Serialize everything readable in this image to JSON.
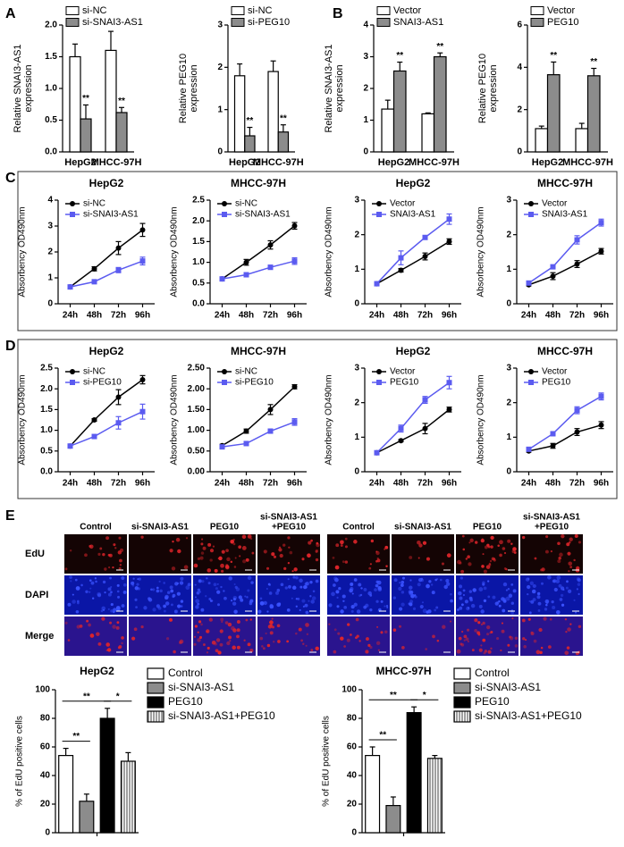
{
  "panel_labels": [
    "A",
    "B",
    "C",
    "D",
    "E"
  ],
  "image_grid": {
    "columns": [
      [
        "Control"
      ],
      [
        "si-SNAI3-AS1"
      ],
      [
        "PEG10"
      ],
      [
        "si-SNAI3-AS1",
        "+PEG10"
      ]
    ],
    "rows": [
      "EdU",
      "DAPI",
      "Merge"
    ]
  },
  "chart_data": [
    {
      "type": "bar",
      "ylabel": [
        "Relative SNAI3-AS1",
        "expression"
      ],
      "categories": [
        "HepG2",
        "MHCC-97H"
      ],
      "legend": "upper left",
      "series": [
        {
          "name": "si-NC",
          "color": "#ffffff",
          "values": [
            1.5,
            1.6
          ],
          "errors": [
            0.2,
            0.3
          ]
        },
        {
          "name": "si-SNAI3-AS1",
          "color": "#8c8c8c",
          "values": [
            0.52,
            0.62
          ],
          "errors": [
            0.22,
            0.08
          ],
          "significance": [
            "**",
            "**"
          ]
        }
      ],
      "ylim": [
        0,
        2
      ],
      "yticks": [
        {
          "value": 0,
          "label": "0.0"
        },
        {
          "value": 0.5,
          "label": "0.5"
        },
        {
          "value": 1,
          "label": "1.0"
        },
        {
          "value": 1.5,
          "label": "1.5"
        },
        {
          "value": 2,
          "label": "2.0"
        }
      ]
    },
    {
      "type": "bar",
      "ylabel": [
        "Relative PEG10",
        "expression"
      ],
      "categories": [
        "HepG2",
        "MHCC-97H"
      ],
      "legend": "upper left",
      "series": [
        {
          "name": "si-NC",
          "color": "#ffffff",
          "values": [
            1.8,
            1.9
          ],
          "errors": [
            0.28,
            0.25
          ]
        },
        {
          "name": "si-PEG10",
          "color": "#8c8c8c",
          "values": [
            0.38,
            0.47
          ],
          "errors": [
            0.2,
            0.17
          ],
          "significance": [
            "**",
            "**"
          ]
        }
      ],
      "ylim": [
        0,
        3
      ],
      "yticks": [
        0,
        1,
        2,
        3
      ]
    },
    {
      "type": "bar",
      "ylabel": [
        "Relative SNAI3-AS1",
        "expression"
      ],
      "categories": [
        "HepG2",
        "MHCC-97H"
      ],
      "legend": "upper left",
      "series": [
        {
          "name": "Vector",
          "color": "#ffffff",
          "values": [
            1.35,
            1.2
          ],
          "errors": [
            0.28,
            0.03
          ]
        },
        {
          "name": "SNAI3-AS1",
          "color": "#8c8c8c",
          "values": [
            2.55,
            3.0
          ],
          "errors": [
            0.28,
            0.12
          ],
          "significance": [
            "**",
            "**"
          ]
        }
      ],
      "ylim": [
        0,
        4
      ],
      "yticks": [
        0,
        1,
        2,
        3,
        4
      ]
    },
    {
      "type": "bar",
      "ylabel": [
        "Relative PEG10",
        "expression"
      ],
      "categories": [
        "HepG2",
        "MHCC-97H"
      ],
      "legend": "upper left",
      "series": [
        {
          "name": "Vector",
          "color": "#ffffff",
          "values": [
            1.1,
            1.1
          ],
          "errors": [
            0.12,
            0.25
          ]
        },
        {
          "name": "PEG10",
          "color": "#8c8c8c",
          "values": [
            3.65,
            3.6
          ],
          "errors": [
            0.6,
            0.35
          ],
          "significance": [
            "**",
            "**"
          ]
        }
      ],
      "ylim": [
        0,
        6
      ],
      "yticks": [
        0,
        2,
        4,
        6
      ]
    },
    {
      "type": "line",
      "title": "HepG2",
      "ylabel": "Absorbency OD490nm",
      "categories": [
        "24h",
        "48h",
        "72h",
        "96h"
      ],
      "legend": "upper left",
      "series": [
        {
          "name": "si-NC",
          "color": "#000000",
          "marker": "circle",
          "values": [
            0.65,
            1.35,
            2.15,
            2.85
          ],
          "errors": [
            0.07,
            0.08,
            0.25,
            0.25
          ]
        },
        {
          "name": "si-SNAI3-AS1",
          "color": "#5b5bf0",
          "marker": "square",
          "values": [
            0.65,
            0.85,
            1.3,
            1.65
          ],
          "errors": [
            0.05,
            0.05,
            0.1,
            0.15
          ]
        }
      ],
      "ylim": [
        0,
        4
      ],
      "yticks": [
        0,
        1,
        2,
        3,
        4
      ]
    },
    {
      "type": "line",
      "title": "MHCC-97H",
      "ylabel": "Absorbency OD490nm",
      "categories": [
        "24h",
        "48h",
        "72h",
        "96h"
      ],
      "legend": "upper left",
      "series": [
        {
          "name": "si-NC",
          "color": "#000000",
          "marker": "circle",
          "values": [
            0.6,
            1.0,
            1.42,
            1.88
          ],
          "errors": [
            0.03,
            0.07,
            0.1,
            0.08
          ]
        },
        {
          "name": "si-SNAI3-AS1",
          "color": "#5b5bf0",
          "marker": "square",
          "values": [
            0.6,
            0.7,
            0.88,
            1.03
          ],
          "errors": [
            0.03,
            0.03,
            0.05,
            0.08
          ]
        }
      ],
      "ylim": [
        0,
        2.5
      ],
      "yticks": [
        {
          "value": 0,
          "label": "0.0"
        },
        {
          "value": 0.5,
          "label": "0.5"
        },
        {
          "value": 1,
          "label": "1.0"
        },
        {
          "value": 1.5,
          "label": "1.5"
        },
        {
          "value": 2,
          "label": "2.0"
        },
        {
          "value": 2.5,
          "label": "2.5"
        }
      ]
    },
    {
      "type": "line",
      "title": "HepG2",
      "ylabel": "Absorbency OD490nm",
      "categories": [
        "24h",
        "48h",
        "72h",
        "96h"
      ],
      "legend": "upper left",
      "series": [
        {
          "name": "Vector",
          "color": "#000000",
          "marker": "circle",
          "values": [
            0.58,
            0.97,
            1.37,
            1.8
          ],
          "errors": [
            0.05,
            0.05,
            0.1,
            0.08
          ]
        },
        {
          "name": "SNAI3-AS1",
          "color": "#5b5bf0",
          "marker": "square",
          "values": [
            0.58,
            1.33,
            1.92,
            2.45
          ],
          "errors": [
            0.05,
            0.2,
            0.05,
            0.15
          ]
        }
      ],
      "ylim": [
        0,
        3
      ],
      "yticks": [
        0,
        1,
        2,
        3
      ]
    },
    {
      "type": "line",
      "title": "MHCC-97H",
      "ylabel": "Absorbency OD490nm",
      "categories": [
        "24h",
        "48h",
        "72h",
        "96h"
      ],
      "legend": "upper left",
      "series": [
        {
          "name": "Vector",
          "color": "#000000",
          "marker": "circle",
          "values": [
            0.55,
            0.8,
            1.15,
            1.52
          ],
          "errors": [
            0.03,
            0.1,
            0.1,
            0.08
          ]
        },
        {
          "name": "SNAI3-AS1",
          "color": "#5b5bf0",
          "marker": "square",
          "values": [
            0.6,
            1.07,
            1.85,
            2.35
          ],
          "errors": [
            0.03,
            0.05,
            0.12,
            0.1
          ]
        }
      ],
      "ylim": [
        0,
        3
      ],
      "yticks": [
        0,
        1,
        2,
        3
      ]
    },
    {
      "type": "line",
      "title": "HepG2",
      "ylabel": "Absorbency OD490nm",
      "categories": [
        "24h",
        "48h",
        "72h",
        "96h"
      ],
      "legend": "upper left",
      "series": [
        {
          "name": "si-NC",
          "color": "#000000",
          "marker": "circle",
          "values": [
            0.62,
            1.25,
            1.8,
            2.22
          ],
          "errors": [
            0.03,
            0.03,
            0.18,
            0.1
          ]
        },
        {
          "name": "si-PEG10",
          "color": "#5b5bf0",
          "marker": "square",
          "values": [
            0.62,
            0.85,
            1.18,
            1.45
          ],
          "errors": [
            0.03,
            0.03,
            0.15,
            0.18
          ]
        }
      ],
      "ylim": [
        0,
        2.5
      ],
      "yticks": [
        {
          "value": 0,
          "label": "0.0"
        },
        {
          "value": 0.5,
          "label": "0.5"
        },
        {
          "value": 1,
          "label": "1.0"
        },
        {
          "value": 1.5,
          "label": "1.5"
        },
        {
          "value": 2,
          "label": "2.0"
        },
        {
          "value": 2.5,
          "label": "2.5"
        }
      ]
    },
    {
      "type": "line",
      "title": "MHCC-97H",
      "ylabel": "Absorbency OD490nm",
      "categories": [
        "24h",
        "48h",
        "72h",
        "96h"
      ],
      "legend": "upper left",
      "series": [
        {
          "name": "si-NC",
          "color": "#000000",
          "marker": "circle",
          "values": [
            0.63,
            0.98,
            1.5,
            2.05
          ],
          "errors": [
            0.03,
            0.05,
            0.12,
            0.05
          ]
        },
        {
          "name": "si-PEG10",
          "color": "#5b5bf0",
          "marker": "square",
          "values": [
            0.6,
            0.68,
            0.98,
            1.2
          ],
          "errors": [
            0.03,
            0.03,
            0.05,
            0.08
          ]
        }
      ],
      "ylim": [
        0,
        2.5
      ],
      "yticks": [
        {
          "value": 0,
          "label": "0.00"
        },
        {
          "value": 0.5,
          "label": "0.50"
        },
        {
          "value": 1,
          "label": "1.00"
        },
        {
          "value": 1.5,
          "label": "1.50"
        },
        {
          "value": 2,
          "label": "2.00"
        },
        {
          "value": 2.5,
          "label": "2.50"
        }
      ]
    },
    {
      "type": "line",
      "title": "HepG2",
      "ylabel": "Absorbency OD490nm",
      "categories": [
        "24h",
        "48h",
        "72h",
        "96h"
      ],
      "legend": "upper left",
      "series": [
        {
          "name": "Vector",
          "color": "#000000",
          "marker": "circle",
          "values": [
            0.55,
            0.9,
            1.25,
            1.8
          ],
          "errors": [
            0.03,
            0.03,
            0.15,
            0.07
          ]
        },
        {
          "name": "PEG10",
          "color": "#5b5bf0",
          "marker": "square",
          "values": [
            0.55,
            1.25,
            2.08,
            2.58
          ],
          "errors": [
            0.03,
            0.1,
            0.1,
            0.18
          ]
        }
      ],
      "ylim": [
        0,
        3
      ],
      "yticks": [
        0,
        1,
        2,
        3
      ]
    },
    {
      "type": "line",
      "title": "MHCC-97H",
      "ylabel": "Absorbency OD490nm",
      "categories": [
        "24h",
        "48h",
        "72h",
        "96h"
      ],
      "legend": "upper left",
      "series": [
        {
          "name": "Vector",
          "color": "#000000",
          "marker": "circle",
          "values": [
            0.6,
            0.75,
            1.15,
            1.35
          ],
          "errors": [
            0.03,
            0.07,
            0.1,
            0.1
          ]
        },
        {
          "name": "PEG10",
          "color": "#5b5bf0",
          "marker": "square",
          "values": [
            0.65,
            1.1,
            1.78,
            2.18
          ],
          "errors": [
            0.03,
            0.05,
            0.1,
            0.1
          ]
        }
      ],
      "ylim": [
        0,
        3
      ],
      "yticks": [
        0,
        1,
        2,
        3
      ]
    },
    {
      "type": "bar",
      "title": "HepG2",
      "ylabel": "% of EdU positive cells",
      "legend": "right",
      "categories": [
        "Control",
        "si-SNAI3-AS1",
        "PEG10",
        "si-SNAI3-AS1+PEG10"
      ],
      "values": [
        54,
        22,
        80,
        50
      ],
      "errors": [
        5,
        5,
        7,
        6
      ],
      "colors": [
        "#ffffff",
        "#8c8c8c",
        "#000000",
        "url(#stripes)"
      ],
      "significance": [
        "**",
        "**",
        "*"
      ],
      "ylim": [
        0,
        100
      ],
      "yticks": [
        0,
        20,
        40,
        60,
        80,
        100
      ]
    },
    {
      "type": "bar",
      "title": "MHCC-97H",
      "ylabel": "% of EdU positive cells",
      "legend": "right",
      "categories": [
        "Control",
        "si-SNAI3-AS1",
        "PEG10",
        "si-SNAI3-AS1+PEG10"
      ],
      "values": [
        54,
        19,
        84,
        52
      ],
      "errors": [
        6,
        6,
        4,
        2
      ],
      "colors": [
        "#ffffff",
        "#8c8c8c",
        "#000000",
        "url(#stripes)"
      ],
      "significance": [
        "**",
        "**",
        "*"
      ],
      "ylim": [
        0,
        100
      ],
      "yticks": [
        0,
        20,
        40,
        60,
        80,
        100
      ]
    }
  ]
}
